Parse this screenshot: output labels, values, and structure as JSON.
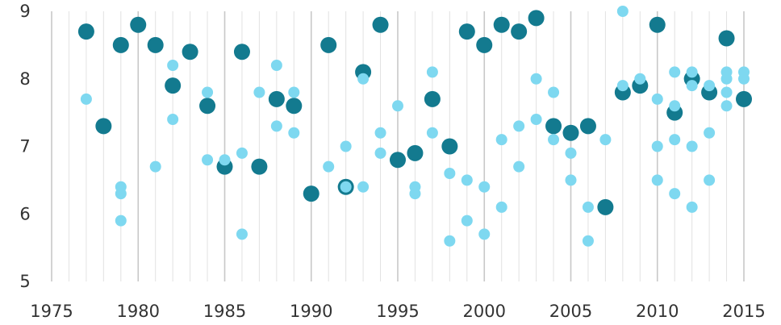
{
  "chart_data": {
    "type": "scatter",
    "title": "",
    "xlabel": "",
    "ylabel": "",
    "xlim": [
      1975,
      2015
    ],
    "ylim": [
      5,
      9
    ],
    "x_ticks": [
      1975,
      1980,
      1985,
      1990,
      1995,
      2000,
      2005,
      2010,
      2015
    ],
    "y_ticks": [
      5,
      6,
      7,
      8,
      9
    ],
    "grid": "vertical gridlines at every year, major lines every 5 years",
    "colors": {
      "dark": "#137a8f",
      "light": "#7ed8f0",
      "grid_major": "#c8c8c8",
      "grid_minor": "#e2e2e2",
      "tick_text": "#333333"
    },
    "series": [
      {
        "color": "#137a8f",
        "points": [
          [
            1977,
            8.7
          ],
          [
            1978,
            7.3
          ],
          [
            1979,
            8.5
          ],
          [
            1980,
            8.8
          ],
          [
            1981,
            8.5
          ],
          [
            1982,
            7.9
          ],
          [
            1983,
            8.4
          ],
          [
            1984,
            7.6
          ],
          [
            1985,
            6.7
          ],
          [
            1986,
            8.4
          ],
          [
            1987,
            6.7
          ],
          [
            1988,
            7.7
          ],
          [
            1989,
            7.6
          ],
          [
            1990,
            6.3
          ],
          [
            1991,
            8.5
          ],
          [
            1992,
            6.4
          ],
          [
            1993,
            8.1
          ],
          [
            1994,
            8.8
          ],
          [
            1995,
            6.8
          ],
          [
            1996,
            6.9
          ],
          [
            1997,
            7.7
          ],
          [
            1998,
            7.0
          ],
          [
            1999,
            8.7
          ],
          [
            2000,
            8.5
          ],
          [
            2001,
            8.8
          ],
          [
            2002,
            8.7
          ],
          [
            2003,
            8.9
          ],
          [
            2004,
            7.3
          ],
          [
            2005,
            7.2
          ],
          [
            2006,
            7.3
          ],
          [
            2007,
            6.1
          ],
          [
            2008,
            7.8
          ],
          [
            2009,
            7.9
          ],
          [
            2010,
            8.8
          ],
          [
            2011,
            7.5
          ],
          [
            2012,
            8.0
          ],
          [
            2013,
            7.8
          ],
          [
            2014,
            8.6
          ],
          [
            2015,
            7.7
          ]
        ]
      },
      {
        "color": "#7ed8f0",
        "points": [
          [
            1977,
            7.7
          ],
          [
            1979,
            6.4
          ],
          [
            1979,
            6.3
          ],
          [
            1979,
            5.9
          ],
          [
            1981,
            6.7
          ],
          [
            1982,
            8.2
          ],
          [
            1982,
            7.4
          ],
          [
            1984,
            7.8
          ],
          [
            1984,
            6.8
          ],
          [
            1985,
            6.8
          ],
          [
            1986,
            6.9
          ],
          [
            1986,
            5.7
          ],
          [
            1987,
            7.8
          ],
          [
            1988,
            8.2
          ],
          [
            1988,
            7.3
          ],
          [
            1989,
            7.8
          ],
          [
            1989,
            7.2
          ],
          [
            1991,
            6.7
          ],
          [
            1992,
            7.0
          ],
          [
            1992,
            6.4
          ],
          [
            1993,
            8.0
          ],
          [
            1993,
            6.4
          ],
          [
            1994,
            7.2
          ],
          [
            1994,
            6.9
          ],
          [
            1995,
            7.6
          ],
          [
            1996,
            6.4
          ],
          [
            1996,
            6.3
          ],
          [
            1997,
            8.1
          ],
          [
            1997,
            7.2
          ],
          [
            1998,
            6.6
          ],
          [
            1998,
            5.6
          ],
          [
            1999,
            6.5
          ],
          [
            1999,
            5.9
          ],
          [
            2000,
            6.4
          ],
          [
            2000,
            5.7
          ],
          [
            2001,
            7.1
          ],
          [
            2001,
            6.1
          ],
          [
            2002,
            7.3
          ],
          [
            2002,
            6.7
          ],
          [
            2003,
            8.0
          ],
          [
            2003,
            7.4
          ],
          [
            2004,
            7.8
          ],
          [
            2004,
            7.1
          ],
          [
            2005,
            6.9
          ],
          [
            2005,
            6.5
          ],
          [
            2006,
            6.1
          ],
          [
            2006,
            5.6
          ],
          [
            2007,
            7.1
          ],
          [
            2008,
            9.0
          ],
          [
            2008,
            7.9
          ],
          [
            2009,
            8.0
          ],
          [
            2010,
            7.7
          ],
          [
            2010,
            7.0
          ],
          [
            2010,
            6.5
          ],
          [
            2011,
            8.1
          ],
          [
            2011,
            7.6
          ],
          [
            2011,
            7.1
          ],
          [
            2011,
            6.3
          ],
          [
            2012,
            8.1
          ],
          [
            2012,
            7.9
          ],
          [
            2012,
            7.0
          ],
          [
            2012,
            6.1
          ],
          [
            2013,
            7.9
          ],
          [
            2013,
            7.2
          ],
          [
            2013,
            6.5
          ],
          [
            2014,
            8.1
          ],
          [
            2014,
            8.0
          ],
          [
            2014,
            7.8
          ],
          [
            2014,
            7.6
          ],
          [
            2015,
            8.1
          ],
          [
            2015,
            8.0
          ]
        ]
      }
    ]
  }
}
